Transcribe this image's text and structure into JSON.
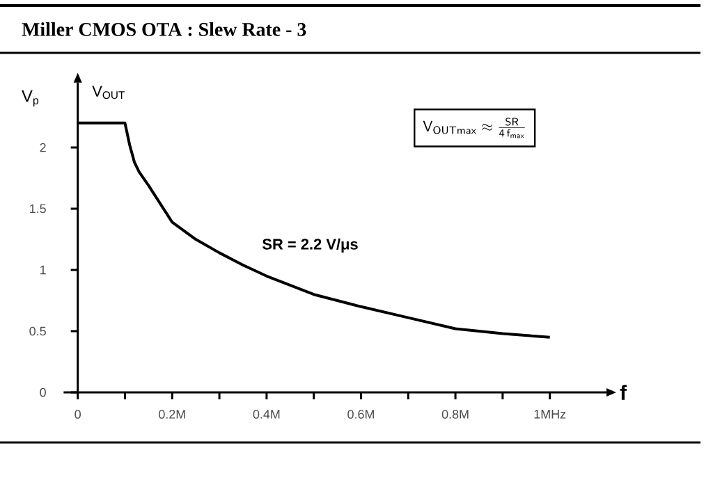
{
  "chart_data": {
    "type": "line",
    "title": "Miller CMOS OTA : Slew Rate - 3",
    "xlabel": "f",
    "ylabel": "V$_{p}$",
    "annotations": [
      "V$_{OUT}$",
      "SR = 2.2 V/μs",
      "\\mathsf{V_{OUTmax}} \\approx \\frac{\\mathsf{SR}}{\\mathsf{4\\,f_{max}}}"
    ],
    "x": [
      0,
      0.1,
      0.11,
      0.12,
      0.13,
      0.15,
      0.2,
      0.25,
      0.3,
      0.35,
      0.4,
      0.5,
      0.6,
      0.7,
      0.8,
      0.9,
      1.0
    ],
    "values": [
      2.2,
      2.2,
      2.02,
      1.88,
      1.8,
      1.69,
      1.39,
      1.25,
      1.14,
      1.04,
      0.95,
      0.8,
      0.7,
      0.61,
      0.52,
      0.48,
      0.45
    ],
    "color": "#000000",
    "xlim": [
      -0.03,
      1.12
    ],
    "ylim": [
      0,
      2.53
    ],
    "xticks": [
      0,
      {
        "value": 0.1,
        "label": null
      },
      {
        "value": 0.2,
        "label": "0.2M"
      },
      {
        "value": 0.3,
        "label": null
      },
      {
        "value": 0.4,
        "label": "0.4M"
      },
      {
        "value": 0.5,
        "label": null
      },
      {
        "value": 0.6,
        "label": "0.6M"
      },
      {
        "value": 0.7,
        "label": null
      },
      {
        "value": 0.8,
        "label": "0.8M"
      },
      {
        "value": 0.9,
        "label": null
      },
      {
        "value": 1,
        "label": "1MHz"
      }
    ],
    "yticks": [
      0,
      0.5,
      1,
      1.5,
      2
    ],
    "grid": false,
    "marker": "none",
    "line_style": "solid"
  }
}
